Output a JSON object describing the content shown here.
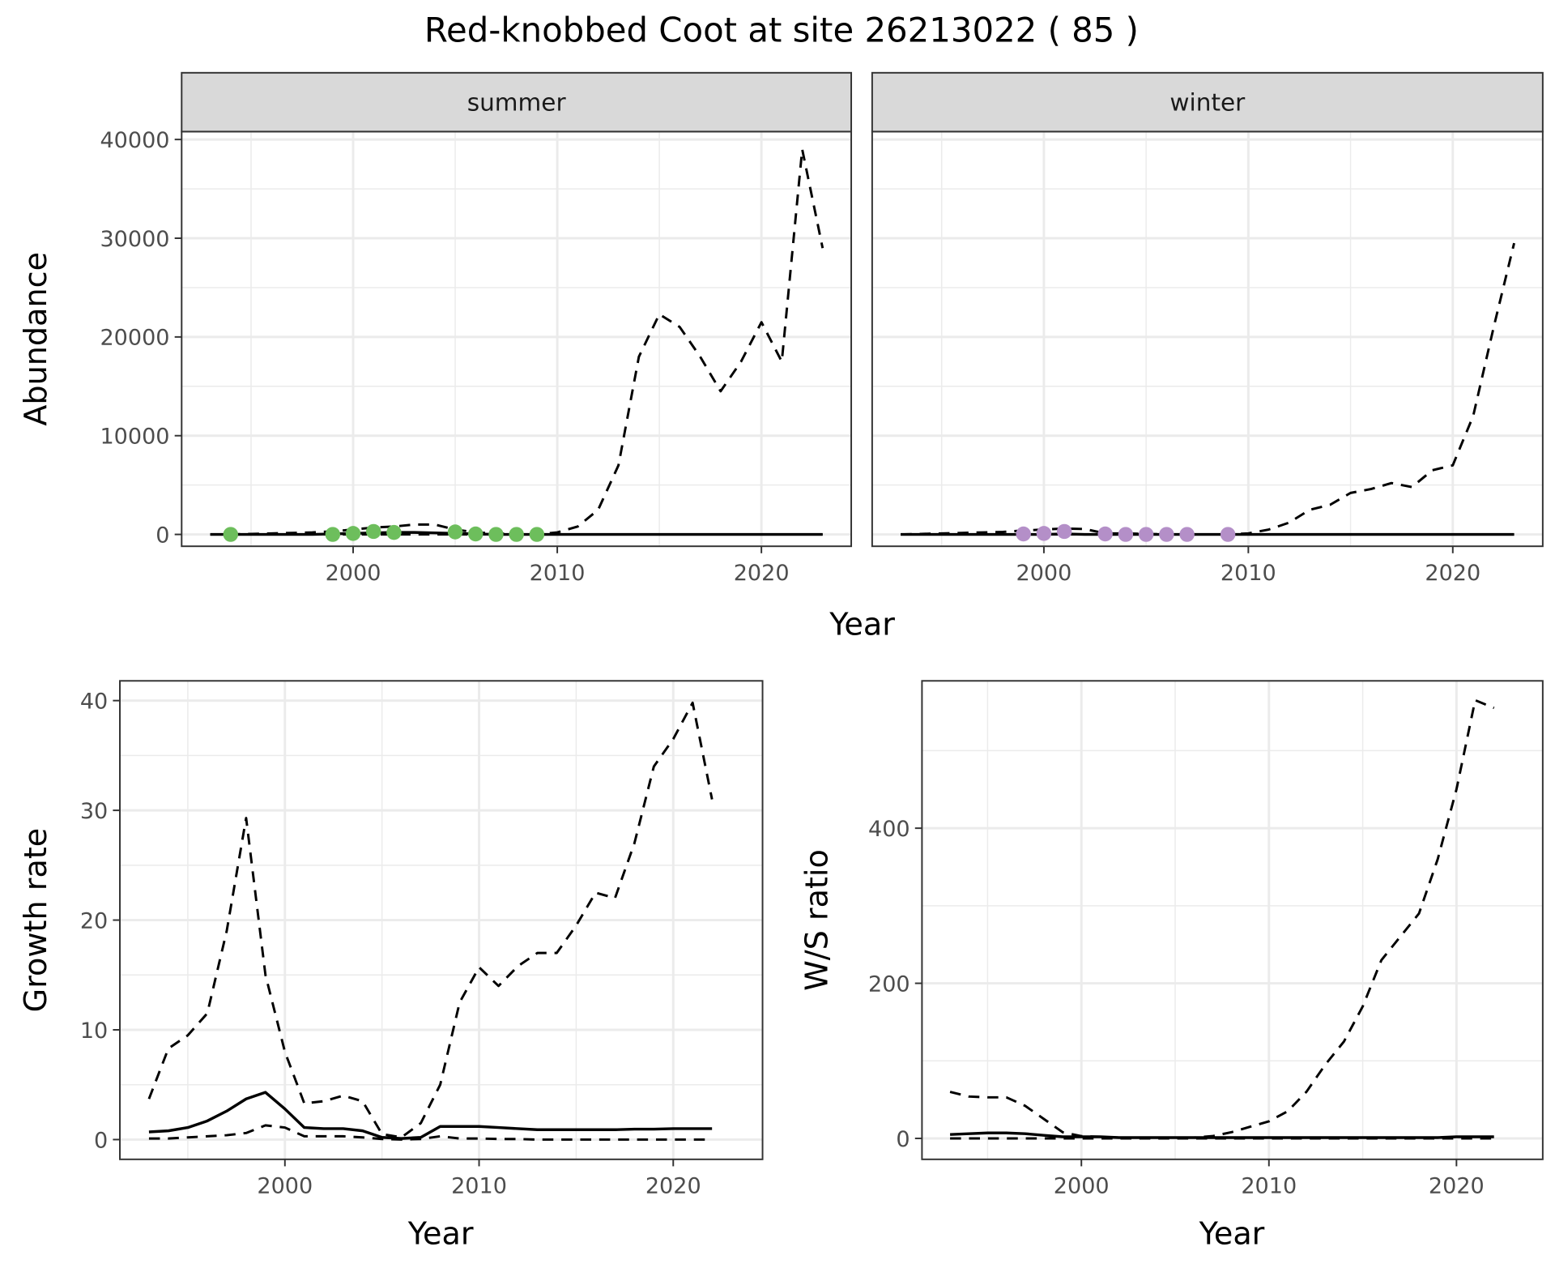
{
  "title": "Red-knobbed Coot at site 26213022 ( 85 )",
  "chart_data": [
    {
      "type": "line",
      "xlabel": "Year",
      "ylabel": "Abundance",
      "xlim": [
        1991.6,
        2024.4
      ],
      "ylim": [
        -1200,
        40800
      ],
      "xticks": [
        2000,
        2010,
        2020
      ],
      "yticks": [
        0,
        10000,
        20000,
        30000,
        40000
      ],
      "grid": true,
      "facets": [
        {
          "label": "summer",
          "x": [
            1993,
            1994,
            1995,
            1996,
            1997,
            1998,
            1999,
            2000,
            2001,
            2002,
            2003,
            2004,
            2005,
            2006,
            2007,
            2008,
            2009,
            2010,
            2011,
            2012,
            2013,
            2014,
            2015,
            2016,
            2017,
            2018,
            2019,
            2020,
            2021,
            2022,
            2023
          ],
          "series": [
            {
              "linetype": "dashed",
              "values": [
                0,
                0,
                50,
                100,
                150,
                200,
                300,
                500,
                700,
                800,
                1000,
                1000,
                500,
                200,
                100,
                50,
                0,
                200,
                800,
                2500,
                7000,
                18000,
                22300,
                21000,
                18000,
                14500,
                17500,
                21500,
                17500,
                39000,
                29000
              ]
            },
            {
              "linetype": "solid",
              "values": [
                0,
                0,
                0,
                0,
                0,
                0,
                50,
                100,
                150,
                200,
                200,
                150,
                100,
                50,
                0,
                0,
                0,
                0,
                0,
                0,
                0,
                0,
                0,
                0,
                0,
                0,
                0,
                0,
                0,
                0,
                0
              ]
            },
            {
              "linetype": "dashed",
              "values": [
                0,
                0,
                0,
                0,
                0,
                0,
                0,
                0,
                0,
                0,
                0,
                0,
                0,
                0,
                0,
                0,
                0,
                0,
                0,
                0,
                0,
                0,
                0,
                0,
                0,
                0,
                0,
                0,
                0,
                0,
                0
              ]
            }
          ],
          "points": {
            "color": "#6dbe5c",
            "x": [
              1994,
              1999,
              2000,
              2001,
              2002,
              2005,
              2006,
              2007,
              2008,
              2009
            ],
            "y": [
              0,
              0,
              100,
              300,
              200,
              250,
              50,
              0,
              0,
              0
            ]
          }
        },
        {
          "label": "winter",
          "x": [
            1993,
            1994,
            1995,
            1996,
            1997,
            1998,
            1999,
            2000,
            2001,
            2002,
            2003,
            2004,
            2005,
            2006,
            2007,
            2008,
            2009,
            2010,
            2011,
            2012,
            2013,
            2014,
            2015,
            2016,
            2017,
            2018,
            2019,
            2020,
            2021,
            2022,
            2023
          ],
          "series": [
            {
              "linetype": "dashed",
              "values": [
                0,
                50,
                100,
                150,
                200,
                250,
                400,
                500,
                600,
                550,
                100,
                100,
                50,
                0,
                0,
                0,
                0,
                100,
                500,
                1200,
                2500,
                3000,
                4200,
                4600,
                5200,
                4800,
                6500,
                7000,
                12000,
                21000,
                29500
              ]
            },
            {
              "linetype": "solid",
              "values": [
                0,
                0,
                0,
                0,
                0,
                0,
                0,
                0,
                50,
                0,
                0,
                0,
                0,
                0,
                0,
                0,
                0,
                0,
                0,
                0,
                0,
                0,
                0,
                0,
                0,
                0,
                0,
                0,
                0,
                0,
                0
              ]
            },
            {
              "linetype": "dashed",
              "values": [
                0,
                0,
                0,
                0,
                0,
                0,
                0,
                0,
                0,
                0,
                0,
                0,
                0,
                0,
                0,
                0,
                0,
                0,
                0,
                0,
                0,
                0,
                0,
                0,
                0,
                0,
                0,
                0,
                0,
                0,
                0
              ]
            }
          ],
          "points": {
            "color": "#b48fc8",
            "x": [
              1999,
              2000,
              2001,
              2003,
              2004,
              2005,
              2006,
              2007,
              2009
            ],
            "y": [
              50,
              100,
              300,
              50,
              0,
              0,
              0,
              0,
              0
            ]
          }
        }
      ]
    },
    {
      "type": "line",
      "xlabel": "Year",
      "ylabel": "Growth rate",
      "xlim": [
        1991.5,
        2024.6
      ],
      "ylim": [
        -1.8,
        41.8
      ],
      "xticks": [
        2000,
        2010,
        2020
      ],
      "yticks": [
        0,
        10,
        20,
        30,
        40
      ],
      "grid": true,
      "x": [
        1993,
        1994,
        1995,
        1996,
        1997,
        1998,
        1999,
        2000,
        2001,
        2002,
        2003,
        2004,
        2005,
        2006,
        2007,
        2008,
        2009,
        2010,
        2011,
        2012,
        2013,
        2014,
        2015,
        2016,
        2017,
        2018,
        2019,
        2020,
        2021,
        2022
      ],
      "series": [
        {
          "linetype": "dashed",
          "values": [
            3.7,
            8.3,
            9.5,
            11.5,
            19,
            29.3,
            15,
            8,
            3.3,
            3.5,
            4,
            3.5,
            0.5,
            0.2,
            1.5,
            5,
            12.5,
            15.7,
            14,
            15.8,
            17,
            17,
            19.5,
            22.5,
            22,
            27,
            34,
            36.5,
            39.8,
            31
          ]
        },
        {
          "linetype": "solid",
          "values": [
            0.7,
            0.8,
            1.1,
            1.7,
            2.6,
            3.7,
            4.3,
            2.8,
            1.1,
            1.0,
            1.0,
            0.8,
            0.2,
            0.1,
            0.2,
            1.2,
            1.2,
            1.2,
            1.1,
            1.0,
            0.9,
            0.9,
            0.9,
            0.9,
            0.9,
            0.95,
            0.95,
            1.0,
            1.0,
            1.0
          ]
        },
        {
          "linetype": "dashed",
          "values": [
            0.1,
            0.1,
            0.2,
            0.3,
            0.4,
            0.6,
            1.3,
            1.1,
            0.3,
            0.3,
            0.3,
            0.2,
            0.05,
            0,
            0.05,
            0.3,
            0.1,
            0.1,
            0.05,
            0.05,
            0,
            0,
            0,
            0,
            0,
            0,
            0,
            0,
            0,
            0
          ]
        }
      ]
    },
    {
      "type": "line",
      "xlabel": "Year",
      "ylabel": "W/S ratio",
      "xlim": [
        1991.5,
        2024.6
      ],
      "ylim": [
        -27,
        590
      ],
      "xticks": [
        2000,
        2010,
        2020
      ],
      "yticks": [
        0,
        200,
        400
      ],
      "grid": true,
      "x": [
        1993,
        1994,
        1995,
        1996,
        1997,
        1998,
        1999,
        2000,
        2001,
        2002,
        2003,
        2004,
        2005,
        2006,
        2007,
        2008,
        2009,
        2010,
        2011,
        2012,
        2013,
        2014,
        2015,
        2016,
        2017,
        2018,
        2019,
        2020,
        2021,
        2022
      ],
      "series": [
        {
          "linetype": "dashed",
          "values": [
            60,
            54,
            53,
            53,
            42,
            25,
            8,
            3,
            2,
            1,
            1,
            1,
            1,
            1,
            3,
            8,
            15,
            22,
            35,
            60,
            95,
            125,
            170,
            230,
            260,
            290,
            360,
            450,
            565,
            555
          ]
        },
        {
          "linetype": "solid",
          "values": [
            5,
            6,
            7,
            7,
            6,
            4,
            2,
            2,
            2,
            1,
            1,
            1,
            1,
            1,
            1,
            1,
            1,
            1,
            1,
            1,
            1,
            1,
            1,
            1,
            1,
            1,
            1,
            2,
            2,
            2
          ]
        },
        {
          "linetype": "dashed",
          "values": [
            0,
            0,
            0,
            0,
            0,
            0,
            0,
            0,
            0,
            0,
            0,
            0,
            0,
            0,
            0,
            0,
            0,
            0,
            0,
            0,
            0,
            0,
            0,
            0,
            0,
            0,
            0,
            0,
            0,
            0
          ]
        }
      ]
    }
  ]
}
